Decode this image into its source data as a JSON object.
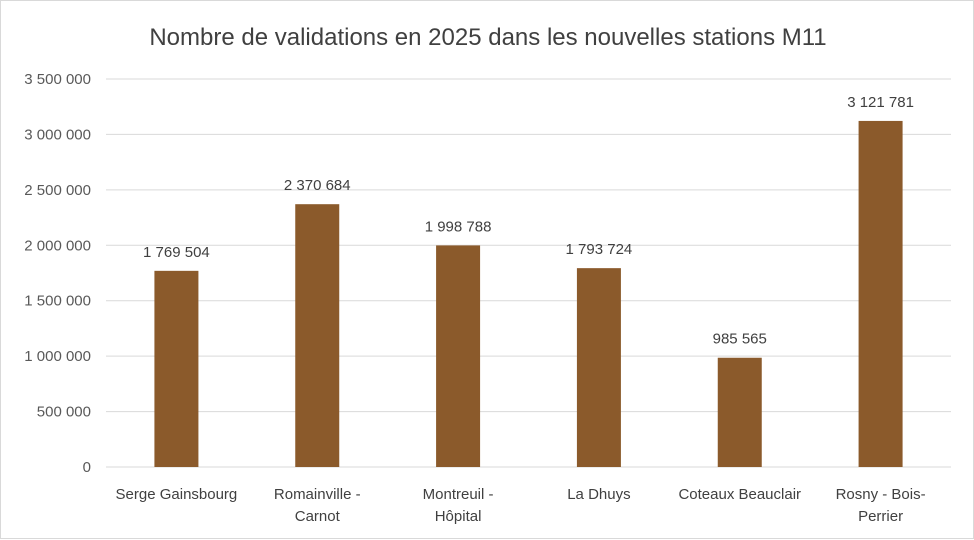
{
  "chart_data": {
    "type": "bar",
    "title": "Nombre de validations en 2025 dans les nouvelles stations M11",
    "categories": [
      [
        "Serge Gainsbourg"
      ],
      [
        "Romainville -",
        "Carnot"
      ],
      [
        "Montreuil -",
        "Hôpital"
      ],
      [
        "La Dhuys"
      ],
      [
        "Coteaux Beauclair"
      ],
      [
        "Rosny - Bois-",
        "Perrier"
      ]
    ],
    "values": [
      1769504,
      2370684,
      1998788,
      1793724,
      985565,
      3121781
    ],
    "data_labels": [
      "1 769 504",
      "2 370 684",
      "1 998 788",
      "1 793 724",
      "985 565",
      "3 121 781"
    ],
    "y_ticks": [
      "0",
      "500 000",
      "1 000 000",
      "1 500 000",
      "2 000 000",
      "2 500 000",
      "3 000 000",
      "3 500 000"
    ],
    "ylim": [
      0,
      3500000
    ],
    "grid": true,
    "legend": "none",
    "bar_color": "#8B5A2B",
    "grid_color": "#d9d9d9"
  }
}
